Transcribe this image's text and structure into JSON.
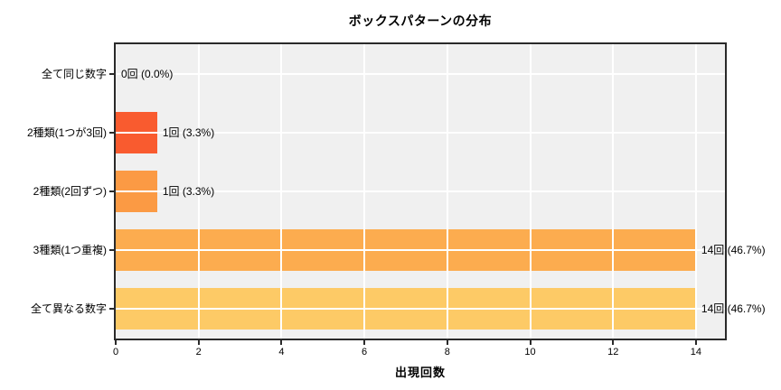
{
  "chart_data": {
    "type": "bar",
    "orientation": "horizontal",
    "title": "ボックスパターンの分布",
    "xlabel": "出現回数",
    "ylabel": "",
    "categories": [
      "全て同じ数字",
      "2種類(1つが3回)",
      "2種類(2回ずつ)",
      "3種類(1つ重複)",
      "全て異なる数字"
    ],
    "values": [
      0,
      1,
      1,
      14,
      14
    ],
    "value_labels": [
      "0回 (0.0%)",
      "1回 (3.3%)",
      "1回 (3.3%)",
      "14回 (46.7%)",
      "14回 (46.7%)"
    ],
    "bar_colors": [
      null,
      "#F95B2F",
      "#FB9A44",
      "#FCAC4F",
      "#FDCA66"
    ],
    "xticks": [
      0,
      2,
      4,
      6,
      8,
      10,
      12,
      14
    ],
    "xlim": [
      0,
      14.7
    ],
    "grid": true,
    "plot_background": "#F0F0F0",
    "grid_color": "#FFFFFF",
    "spine_color": "#2A2A2A",
    "legend": "none"
  }
}
